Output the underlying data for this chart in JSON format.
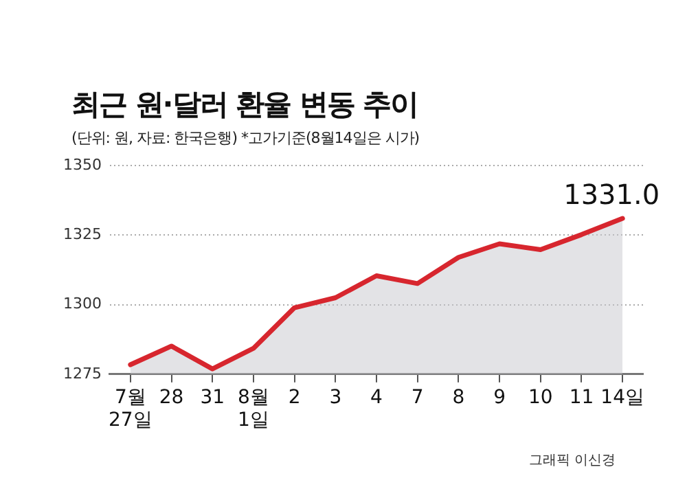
{
  "chart_data": {
    "type": "area",
    "title": "최근 원·달러 환율 변동 추이",
    "subtitle": "(단위: 원, 자료: 한국은행)   *고가기준(8월14일은 시가)",
    "categories": [
      "7월 27일",
      "28",
      "31",
      "8월 1일",
      "2",
      "3",
      "4",
      "7",
      "8",
      "9",
      "10",
      "11",
      "14일"
    ],
    "series": [
      {
        "color": "#d7262e",
        "values": [
          1278.4,
          1285.1,
          1276.9,
          1284.3,
          1298.9,
          1302.5,
          1310.4,
          1307.6,
          1317.0,
          1321.9,
          1319.8,
          1325.2,
          1331.0
        ],
        "value_labels": [
          null,
          null,
          null,
          null,
          null,
          null,
          null,
          null,
          null,
          null,
          null,
          null,
          "1331.0"
        ]
      }
    ],
    "ylim": [
      1275,
      1350
    ],
    "yticks": [
      1275,
      1300,
      1325,
      1350
    ],
    "grid": "y",
    "legend": false,
    "annotations": [
      "그래픽 이신경"
    ]
  }
}
